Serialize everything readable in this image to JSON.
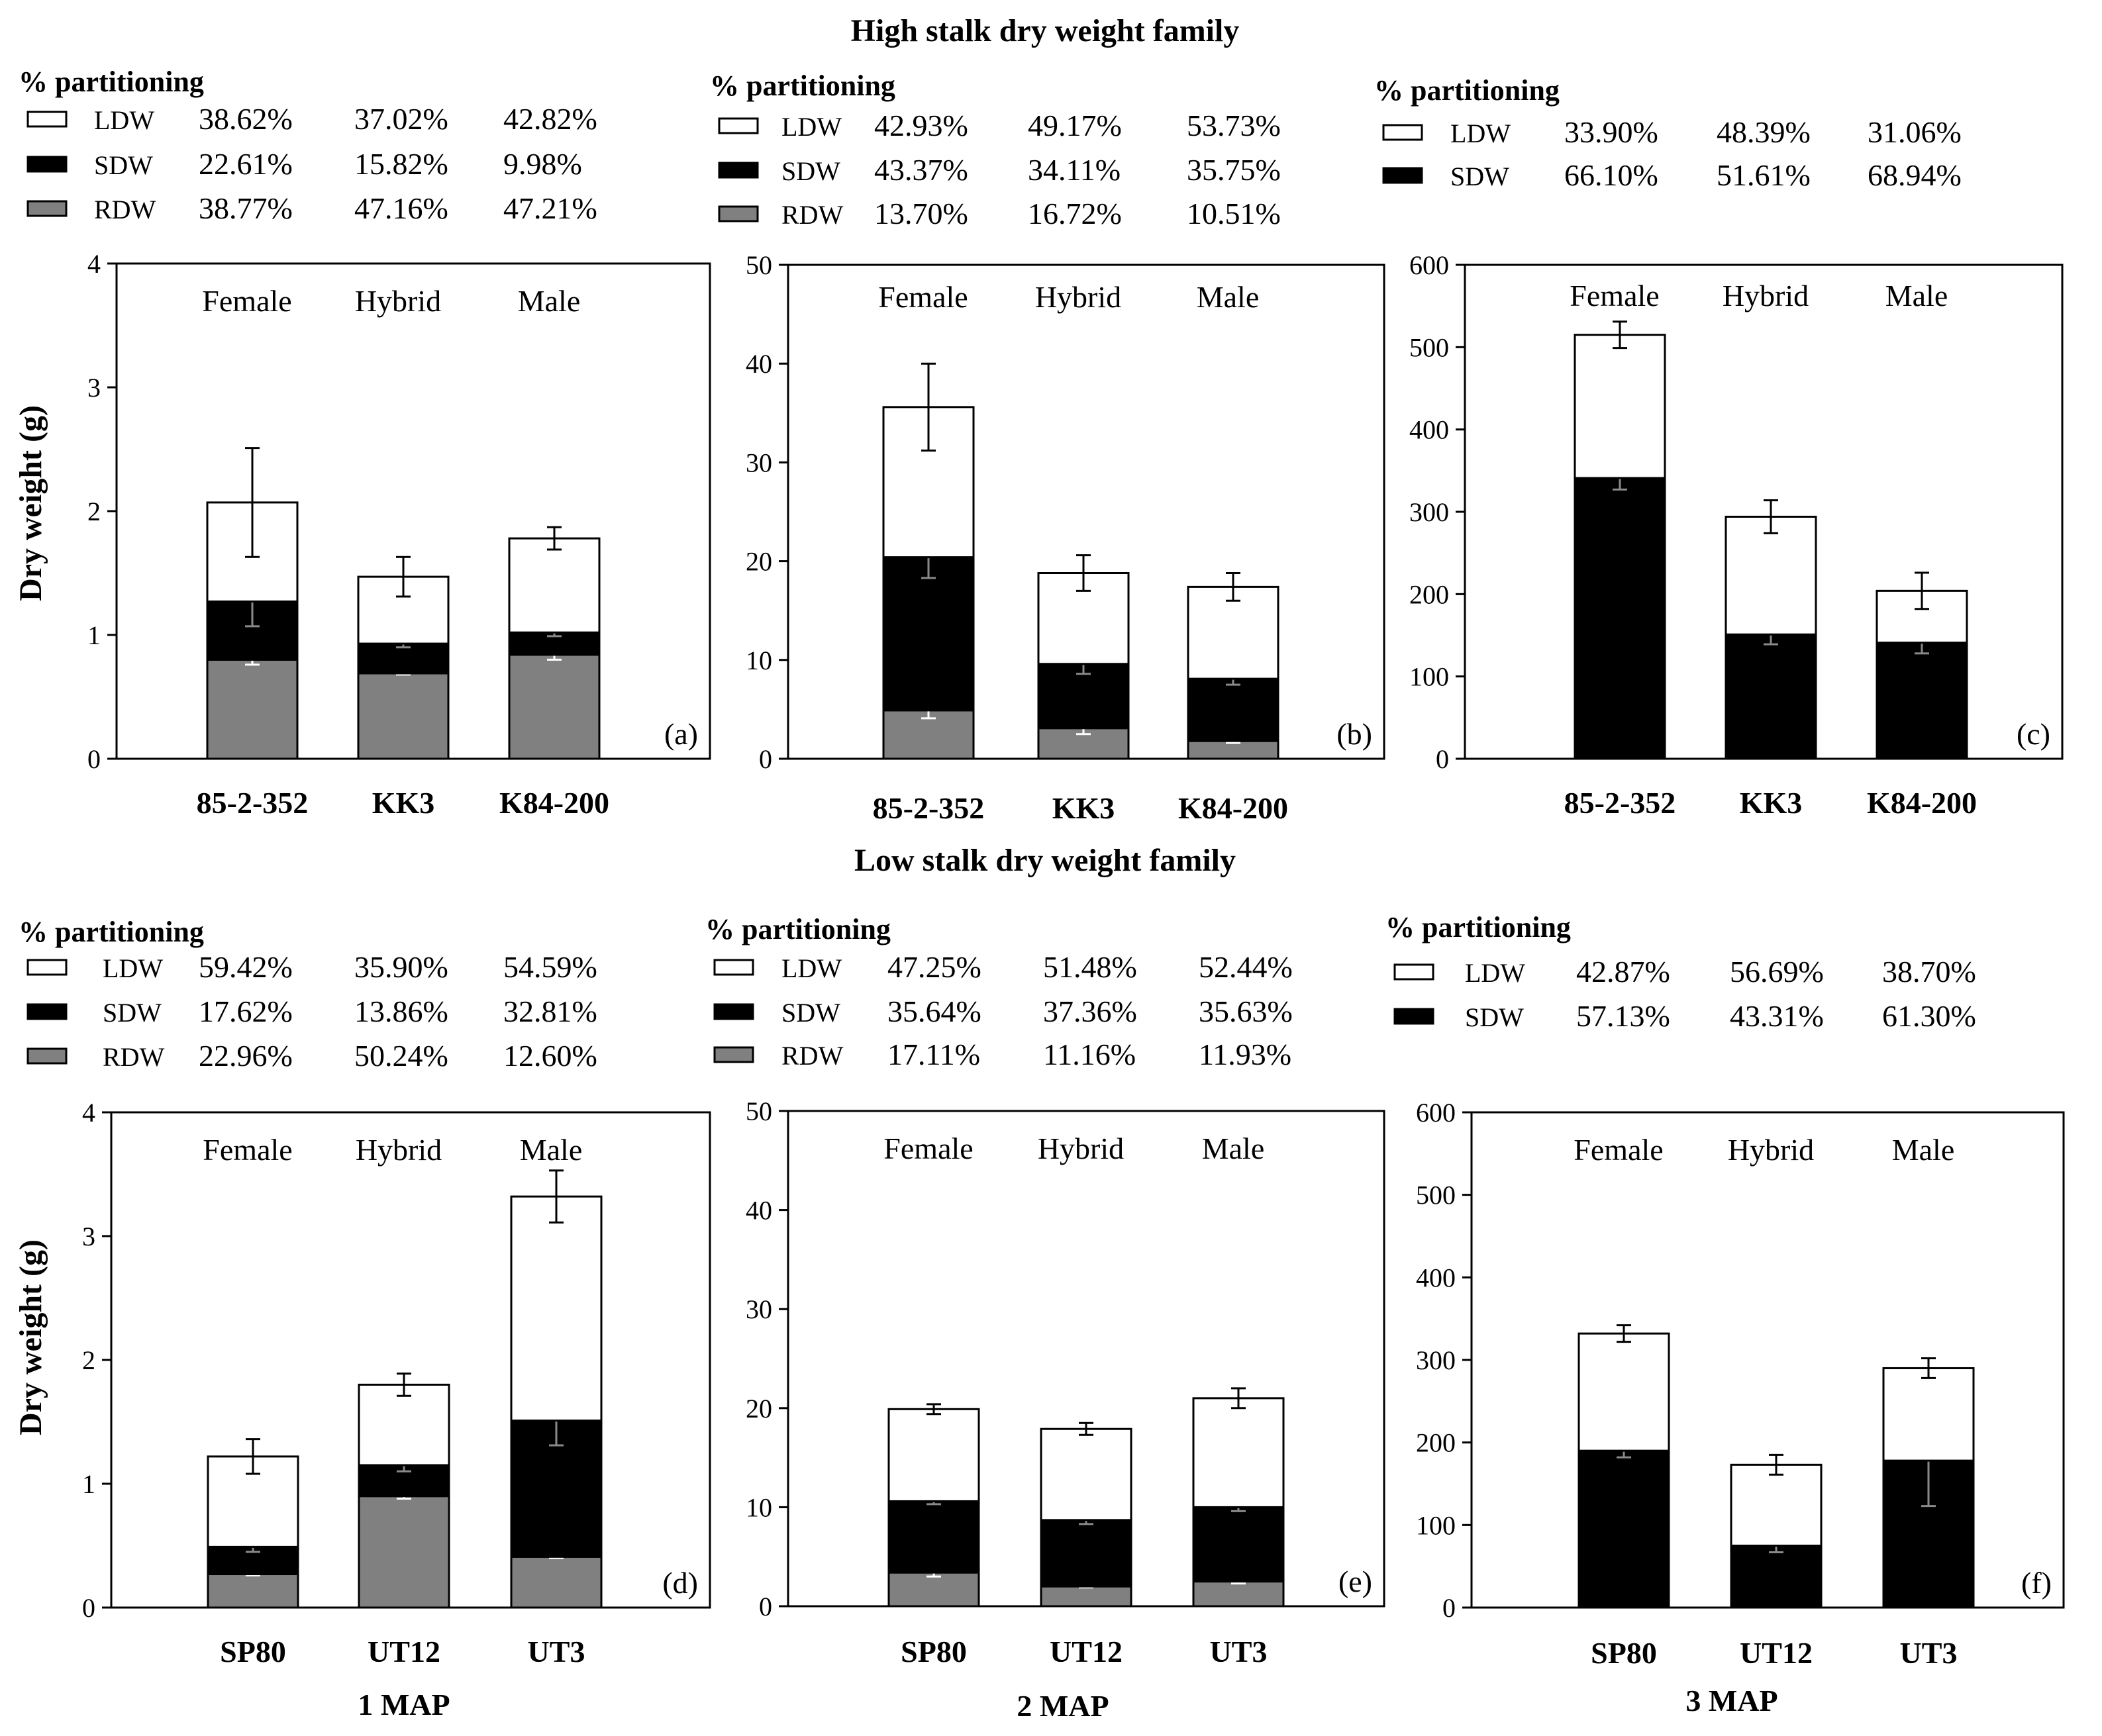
{
  "figure": {
    "title_high": "High stalk dry weight  family",
    "title_low": "Low stalk dry weight  family",
    "ylabel": "Dry weight (g)",
    "partition_heading": "% partitioning",
    "map_labels": [
      "1 MAP",
      "2 MAP",
      "3 MAP"
    ]
  },
  "colors": {
    "LDW": "#ffffff",
    "SDW": "#000000",
    "RDW": "#808080"
  },
  "chart_data": [
    {
      "panel": "(a)",
      "type": "bar",
      "stacked": true,
      "family": "high",
      "title": "High stalk dry weight  family",
      "ylabel": "Dry weight (g)",
      "xlabel": "",
      "ylim": [
        0,
        4
      ],
      "yticks": [
        0,
        1,
        2,
        3,
        4
      ],
      "categories": [
        "85-2-352",
        "KK3",
        "K84-200"
      ],
      "roles": [
        "Female",
        "Hybrid",
        "Male"
      ],
      "series": [
        {
          "name": "RDW",
          "values": [
            0.8,
            0.69,
            0.84
          ],
          "err": [
            0.04,
            0.01,
            0.04
          ]
        },
        {
          "name": "SDW",
          "values": [
            0.47,
            0.24,
            0.18
          ],
          "err": [
            0.2,
            0.03,
            0.03
          ]
        },
        {
          "name": "LDW",
          "values": [
            0.8,
            0.54,
            0.76
          ],
          "err": [
            0.44,
            0.16,
            0.09
          ]
        }
      ],
      "partitioning": [
        {
          "label": "LDW",
          "values": [
            "38.62%",
            "37.02%",
            "42.82%"
          ]
        },
        {
          "label": "SDW",
          "values": [
            "22.61%",
            "15.82%",
            "9.98%"
          ]
        },
        {
          "label": "RDW",
          "values": [
            "38.77%",
            "47.16%",
            "47.21%"
          ]
        }
      ]
    },
    {
      "panel": "(b)",
      "type": "bar",
      "stacked": true,
      "family": "high",
      "ylim": [
        0,
        50
      ],
      "yticks": [
        0,
        10,
        20,
        30,
        40,
        50
      ],
      "categories": [
        "85-2-352",
        "KK3",
        "K84-200"
      ],
      "roles": [
        "Female",
        "Hybrid",
        "Male"
      ],
      "series": [
        {
          "name": "RDW",
          "values": [
            4.9,
            3.1,
            1.8
          ],
          "err": [
            0.8,
            0.6,
            0.2
          ]
        },
        {
          "name": "SDW",
          "values": [
            15.5,
            6.5,
            6.3
          ],
          "err": [
            2.1,
            1.0,
            0.6
          ]
        },
        {
          "name": "LDW",
          "values": [
            15.2,
            9.2,
            9.3
          ],
          "err": [
            4.4,
            1.8,
            1.4
          ]
        }
      ],
      "partitioning": [
        {
          "label": "LDW",
          "values": [
            "42.93%",
            "49.17%",
            "53.73%"
          ]
        },
        {
          "label": "SDW",
          "values": [
            "43.37%",
            "34.11%",
            "35.75%"
          ]
        },
        {
          "label": "RDW",
          "values": [
            "13.70%",
            "16.72%",
            "10.51%"
          ]
        }
      ]
    },
    {
      "panel": "(c)",
      "type": "bar",
      "stacked": true,
      "family": "high",
      "ylim": [
        0,
        600
      ],
      "yticks": [
        0,
        100,
        200,
        300,
        400,
        500,
        600
      ],
      "categories": [
        "85-2-352",
        "KK3",
        "K84-200"
      ],
      "roles": [
        "Female",
        "Hybrid",
        "Male"
      ],
      "series": [
        {
          "name": "SDW",
          "values": [
            341,
            151,
            141
          ],
          "err": [
            14,
            12,
            13
          ]
        },
        {
          "name": "LDW",
          "values": [
            174,
            143,
            63
          ],
          "err": [
            16,
            20,
            22
          ]
        }
      ],
      "partitioning": [
        {
          "label": "LDW",
          "values": [
            "33.90%",
            "48.39%",
            "31.06%"
          ]
        },
        {
          "label": "SDW",
          "values": [
            "66.10%",
            "51.61%",
            "68.94%"
          ]
        }
      ]
    },
    {
      "panel": "(d)",
      "type": "bar",
      "stacked": true,
      "family": "low",
      "title": "Low stalk dry weight  family",
      "ylabel": "Dry weight (g)",
      "xlabel": "1 MAP",
      "ylim": [
        0,
        4
      ],
      "yticks": [
        0,
        1,
        2,
        3,
        4
      ],
      "categories": [
        "SP80",
        "UT12",
        "UT3"
      ],
      "roles": [
        "Female",
        "Hybrid",
        "Male"
      ],
      "series": [
        {
          "name": "RDW",
          "values": [
            0.27,
            0.9,
            0.41
          ],
          "err": [
            0.01,
            0.02,
            0.01
          ]
        },
        {
          "name": "SDW",
          "values": [
            0.22,
            0.25,
            1.1
          ],
          "err": [
            0.04,
            0.05,
            0.2
          ]
        },
        {
          "name": "LDW",
          "values": [
            0.73,
            0.65,
            1.81
          ],
          "err": [
            0.14,
            0.09,
            0.21
          ]
        }
      ],
      "partitioning": [
        {
          "label": "LDW",
          "values": [
            "59.42%",
            "35.90%",
            "54.59%"
          ]
        },
        {
          "label": "SDW",
          "values": [
            "17.62%",
            "13.86%",
            "32.81%"
          ]
        },
        {
          "label": "RDW",
          "values": [
            "22.96%",
            "50.24%",
            "12.60%"
          ]
        }
      ]
    },
    {
      "panel": "(e)",
      "type": "bar",
      "stacked": true,
      "family": "low",
      "xlabel": "2 MAP",
      "ylim": [
        0,
        50
      ],
      "yticks": [
        0,
        10,
        20,
        30,
        40,
        50
      ],
      "categories": [
        "SP80",
        "UT12",
        "UT3"
      ],
      "roles": [
        "Female",
        "Hybrid",
        "Male"
      ],
      "series": [
        {
          "name": "RDW",
          "values": [
            3.4,
            2.0,
            2.5
          ],
          "err": [
            0.4,
            0.1,
            0.2
          ]
        },
        {
          "name": "SDW",
          "values": [
            7.2,
            6.7,
            7.5
          ],
          "err": [
            0.3,
            0.4,
            0.4
          ]
        },
        {
          "name": "LDW",
          "values": [
            9.3,
            9.2,
            11.0
          ],
          "err": [
            0.5,
            0.6,
            1.0
          ]
        }
      ],
      "partitioning": [
        {
          "label": "LDW",
          "values": [
            "47.25%",
            "51.48%",
            "52.44%"
          ]
        },
        {
          "label": "SDW",
          "values": [
            "35.64%",
            "37.36%",
            "35.63%"
          ]
        },
        {
          "label": "RDW",
          "values": [
            "17.11%",
            "11.16%",
            "11.93%"
          ]
        }
      ]
    },
    {
      "panel": "(f)",
      "type": "bar",
      "stacked": true,
      "family": "low",
      "xlabel": "3 MAP",
      "ylim": [
        0,
        600
      ],
      "yticks": [
        0,
        100,
        200,
        300,
        400,
        500,
        600
      ],
      "categories": [
        "SP80",
        "UT12",
        "UT3"
      ],
      "roles": [
        "Female",
        "Hybrid",
        "Male"
      ],
      "series": [
        {
          "name": "SDW",
          "values": [
            190,
            75,
            178
          ],
          "err": [
            8,
            8,
            55
          ]
        },
        {
          "name": "LDW",
          "values": [
            142,
            98,
            112
          ],
          "err": [
            10,
            12,
            12
          ]
        }
      ],
      "partitioning": [
        {
          "label": "LDW",
          "values": [
            "42.87%",
            "56.69%",
            "38.70%"
          ]
        },
        {
          "label": "SDW",
          "values": [
            "57.13%",
            "43.31%",
            "61.30%"
          ]
        }
      ]
    }
  ]
}
